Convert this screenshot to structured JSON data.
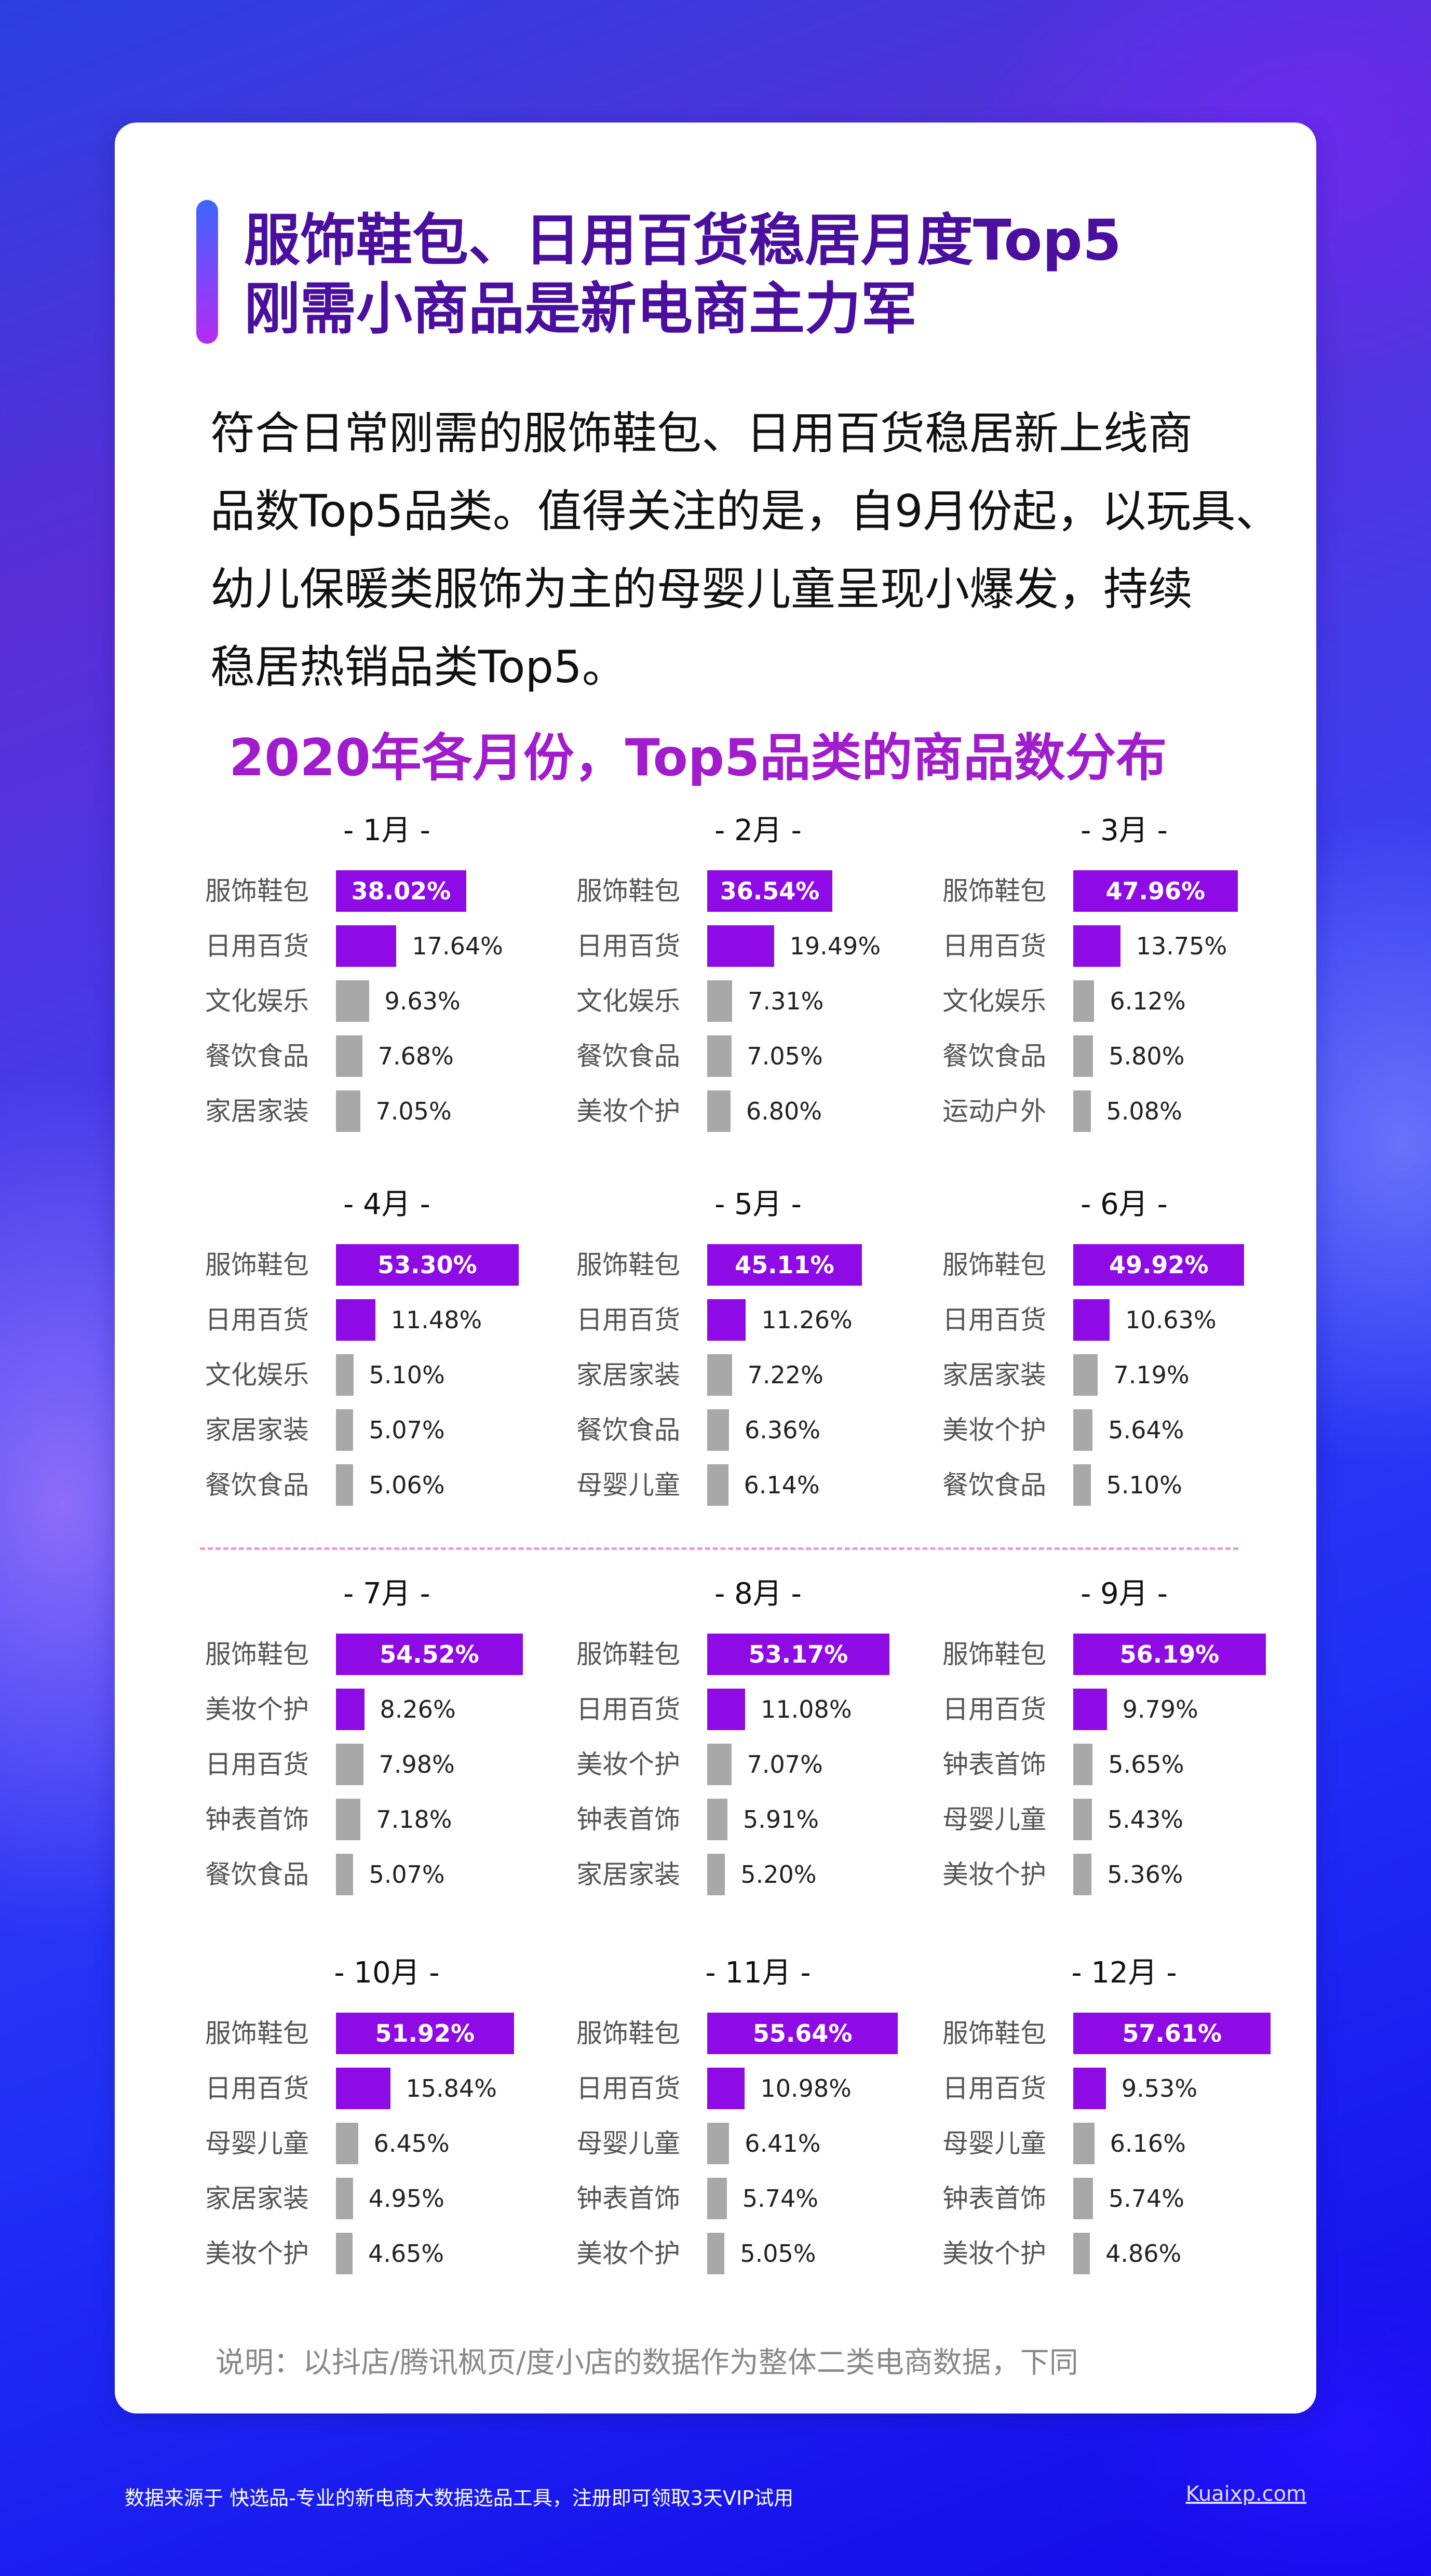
{
  "header": {
    "title_line1": "服饰鞋包、日用百货稳居月度Top5",
    "title_line2": "刚需小商品是新电商主力军"
  },
  "intro_lines": [
    "符合日常刚需的服饰鞋包、日用百货稳居新上线商",
    "品数Top5品类。值得关注的是，自9月份起，以玩具、",
    "幼儿保暖类服饰为主的母婴儿童呈现小爆发，持续",
    "稳居热销品类Top5。"
  ],
  "colors": {
    "accent_top": "#3e66ff",
    "accent_bottom": "#b42cf2",
    "title": "#4a0f9e",
    "chart_title": "#a01ccc",
    "bar_highlight": "#8f0be6",
    "bar_gray": "#a8a8a8",
    "divider": "#ec9bd8"
  },
  "chart_data": {
    "type": "bar",
    "title": "2020年各月份，Top5品类的商品数分布",
    "orientation": "horizontal",
    "value_unit": "%",
    "xlim": [
      0,
      60
    ],
    "panels": [
      {
        "month": "- 1月 -",
        "categories": [
          "服饰鞋包",
          "日用百货",
          "文化娱乐",
          "餐饮食品",
          "家居家装"
        ],
        "values": [
          38.02,
          17.64,
          9.63,
          7.68,
          7.05
        ],
        "labels": [
          "38.02%",
          "17.64%",
          "9.63%",
          "7.68%",
          "7.05%"
        ]
      },
      {
        "month": "- 2月 -",
        "categories": [
          "服饰鞋包",
          "日用百货",
          "文化娱乐",
          "餐饮食品",
          "美妆个护"
        ],
        "values": [
          36.54,
          19.49,
          7.31,
          7.05,
          6.8
        ],
        "labels": [
          "36.54%",
          "19.49%",
          "7.31%",
          "7.05%",
          "6.80%"
        ]
      },
      {
        "month": "- 3月 -",
        "categories": [
          "服饰鞋包",
          "日用百货",
          "文化娱乐",
          "餐饮食品",
          "运动户外"
        ],
        "values": [
          47.96,
          13.75,
          6.12,
          5.8,
          5.08
        ],
        "labels": [
          "47.96%",
          "13.75%",
          "6.12%",
          "5.80%",
          "5.08%"
        ]
      },
      {
        "month": "- 4月 -",
        "categories": [
          "服饰鞋包",
          "日用百货",
          "文化娱乐",
          "家居家装",
          "餐饮食品"
        ],
        "values": [
          53.3,
          11.48,
          5.1,
          5.07,
          5.06
        ],
        "labels": [
          "53.30%",
          "11.48%",
          "5.10%",
          "5.07%",
          "5.06%"
        ]
      },
      {
        "month": "- 5月 -",
        "categories": [
          "服饰鞋包",
          "日用百货",
          "家居家装",
          "餐饮食品",
          "母婴儿童"
        ],
        "values": [
          45.11,
          11.26,
          7.22,
          6.36,
          6.14
        ],
        "labels": [
          "45.11%",
          "11.26%",
          "7.22%",
          "6.36%",
          "6.14%"
        ]
      },
      {
        "month": "- 6月 -",
        "categories": [
          "服饰鞋包",
          "日用百货",
          "家居家装",
          "美妆个护",
          "餐饮食品"
        ],
        "values": [
          49.92,
          10.63,
          7.19,
          5.64,
          5.1
        ],
        "labels": [
          "49.92%",
          "10.63%",
          "7.19%",
          "5.64%",
          "5.10%"
        ]
      },
      {
        "month": "- 7月 -",
        "categories": [
          "服饰鞋包",
          "美妆个护",
          "日用百货",
          "钟表首饰",
          "餐饮食品"
        ],
        "values": [
          54.52,
          8.26,
          7.98,
          7.18,
          5.07
        ],
        "labels": [
          "54.52%",
          "8.26%",
          "7.98%",
          "7.18%",
          "5.07%"
        ]
      },
      {
        "month": "- 8月 -",
        "categories": [
          "服饰鞋包",
          "日用百货",
          "美妆个护",
          "钟表首饰",
          "家居家装"
        ],
        "values": [
          53.17,
          11.08,
          7.07,
          5.91,
          5.2
        ],
        "labels": [
          "53.17%",
          "11.08%",
          "7.07%",
          "5.91%",
          "5.20%"
        ]
      },
      {
        "month": "- 9月 -",
        "categories": [
          "服饰鞋包",
          "日用百货",
          "钟表首饰",
          "母婴儿童",
          "美妆个护"
        ],
        "values": [
          56.19,
          9.79,
          5.65,
          5.43,
          5.36
        ],
        "labels": [
          "56.19%",
          "9.79%",
          "5.65%",
          "5.43%",
          "5.36%"
        ]
      },
      {
        "month": "- 10月 -",
        "categories": [
          "服饰鞋包",
          "日用百货",
          "母婴儿童",
          "家居家装",
          "美妆个护"
        ],
        "values": [
          51.92,
          15.84,
          6.45,
          4.95,
          4.65
        ],
        "labels": [
          "51.92%",
          "15.84%",
          "6.45%",
          "4.95%",
          "4.65%"
        ]
      },
      {
        "month": "- 11月 -",
        "categories": [
          "服饰鞋包",
          "日用百货",
          "母婴儿童",
          "钟表首饰",
          "美妆个护"
        ],
        "values": [
          55.64,
          10.98,
          6.41,
          5.74,
          5.05
        ],
        "labels": [
          "55.64%",
          "10.98%",
          "6.41%",
          "5.74%",
          "5.05%"
        ]
      },
      {
        "month": "- 12月 -",
        "categories": [
          "服饰鞋包",
          "日用百货",
          "母婴儿童",
          "钟表首饰",
          "美妆个护"
        ],
        "values": [
          57.61,
          9.53,
          6.16,
          5.74,
          4.86
        ],
        "labels": [
          "57.61%",
          "9.53%",
          "6.16%",
          "5.74%",
          "4.86%"
        ]
      }
    ]
  },
  "note": "说明：以抖店/腾讯枫页/度小店的数据作为整体二类电商数据，下同",
  "footer": {
    "source": "数据来源于 快选品-专业的新电商大数据选品工具，注册即可领取3天VIP试用",
    "link": "Kuaixp.com"
  }
}
